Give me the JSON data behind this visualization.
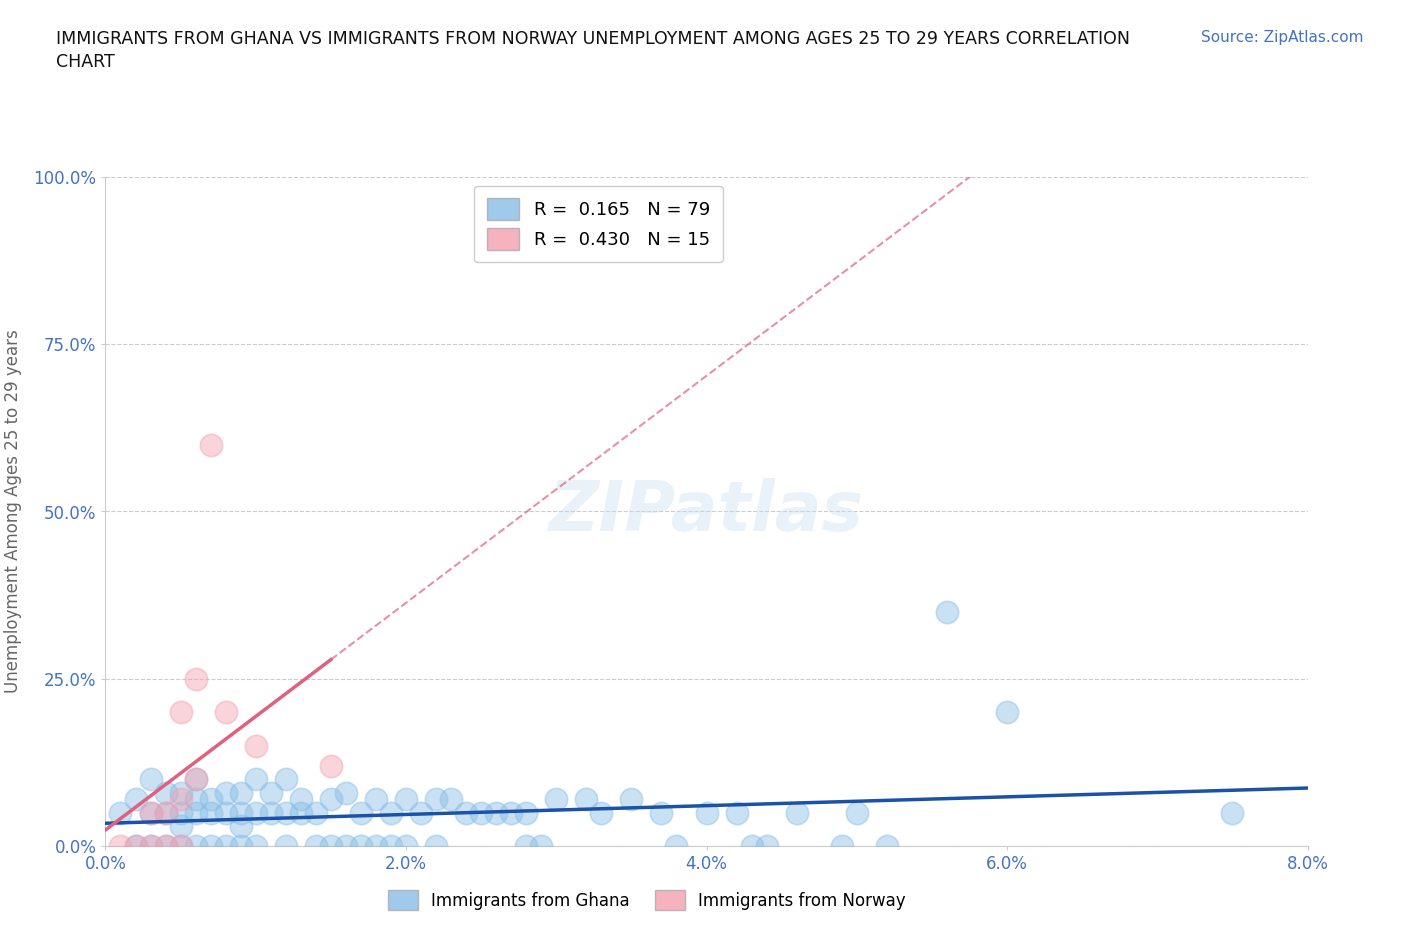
{
  "title_line1": "IMMIGRANTS FROM GHANA VS IMMIGRANTS FROM NORWAY UNEMPLOYMENT AMONG AGES 25 TO 29 YEARS CORRELATION",
  "title_line2": "CHART",
  "ylabel": "Unemployment Among Ages 25 to 29 years",
  "source_text": "Source: ZipAtlas.com",
  "xlim": [
    0.0,
    0.08
  ],
  "ylim": [
    0.0,
    1.0
  ],
  "xtick_labels": [
    "0.0%",
    "2.0%",
    "4.0%",
    "6.0%",
    "8.0%"
  ],
  "xtick_values": [
    0.0,
    0.02,
    0.04,
    0.06,
    0.08
  ],
  "ytick_labels": [
    "0.0%",
    "25.0%",
    "50.0%",
    "75.0%",
    "100.0%"
  ],
  "ytick_values": [
    0.0,
    0.25,
    0.5,
    0.75,
    1.0
  ],
  "ghana_color": "#88bde6",
  "norway_color": "#f4a0b0",
  "ghana_line_color": "#1a52a8",
  "norway_line_color": "#e06080",
  "grid_color": "#cccccc",
  "axis_tick_color": "#4472c4",
  "ghana_R": 0.165,
  "ghana_N": 79,
  "norway_R": 0.43,
  "norway_N": 15,
  "ghana_x": [
    0.001,
    0.002,
    0.002,
    0.003,
    0.003,
    0.003,
    0.004,
    0.004,
    0.004,
    0.005,
    0.005,
    0.005,
    0.005,
    0.006,
    0.006,
    0.006,
    0.006,
    0.007,
    0.007,
    0.007,
    0.008,
    0.008,
    0.008,
    0.009,
    0.009,
    0.009,
    0.009,
    0.01,
    0.01,
    0.01,
    0.011,
    0.011,
    0.012,
    0.012,
    0.012,
    0.013,
    0.013,
    0.014,
    0.014,
    0.015,
    0.015,
    0.016,
    0.016,
    0.017,
    0.017,
    0.018,
    0.018,
    0.019,
    0.019,
    0.02,
    0.02,
    0.021,
    0.022,
    0.022,
    0.023,
    0.024,
    0.025,
    0.026,
    0.027,
    0.028,
    0.028,
    0.029,
    0.03,
    0.032,
    0.033,
    0.035,
    0.037,
    0.038,
    0.04,
    0.042,
    0.043,
    0.044,
    0.046,
    0.049,
    0.05,
    0.052,
    0.056,
    0.06,
    0.075
  ],
  "ghana_y": [
    0.05,
    0.0,
    0.07,
    0.0,
    0.05,
    0.1,
    0.0,
    0.05,
    0.08,
    0.0,
    0.03,
    0.05,
    0.08,
    0.0,
    0.05,
    0.07,
    0.1,
    0.0,
    0.05,
    0.07,
    0.0,
    0.05,
    0.08,
    0.0,
    0.03,
    0.05,
    0.08,
    0.0,
    0.05,
    0.1,
    0.05,
    0.08,
    0.0,
    0.05,
    0.1,
    0.05,
    0.07,
    0.0,
    0.05,
    0.0,
    0.07,
    0.0,
    0.08,
    0.0,
    0.05,
    0.0,
    0.07,
    0.0,
    0.05,
    0.0,
    0.07,
    0.05,
    0.0,
    0.07,
    0.07,
    0.05,
    0.05,
    0.05,
    0.05,
    0.0,
    0.05,
    0.0,
    0.07,
    0.07,
    0.05,
    0.07,
    0.05,
    0.0,
    0.05,
    0.05,
    0.0,
    0.0,
    0.05,
    0.0,
    0.05,
    0.0,
    0.35,
    0.2,
    0.05
  ],
  "norway_x": [
    0.001,
    0.002,
    0.003,
    0.003,
    0.004,
    0.004,
    0.005,
    0.005,
    0.005,
    0.006,
    0.006,
    0.007,
    0.008,
    0.01,
    0.015
  ],
  "norway_y": [
    0.0,
    0.0,
    0.0,
    0.05,
    0.0,
    0.05,
    0.0,
    0.07,
    0.2,
    0.25,
    0.1,
    0.6,
    0.2,
    0.15,
    0.12
  ],
  "norway_line_start_x": 0.0,
  "norway_line_end_x": 0.08
}
